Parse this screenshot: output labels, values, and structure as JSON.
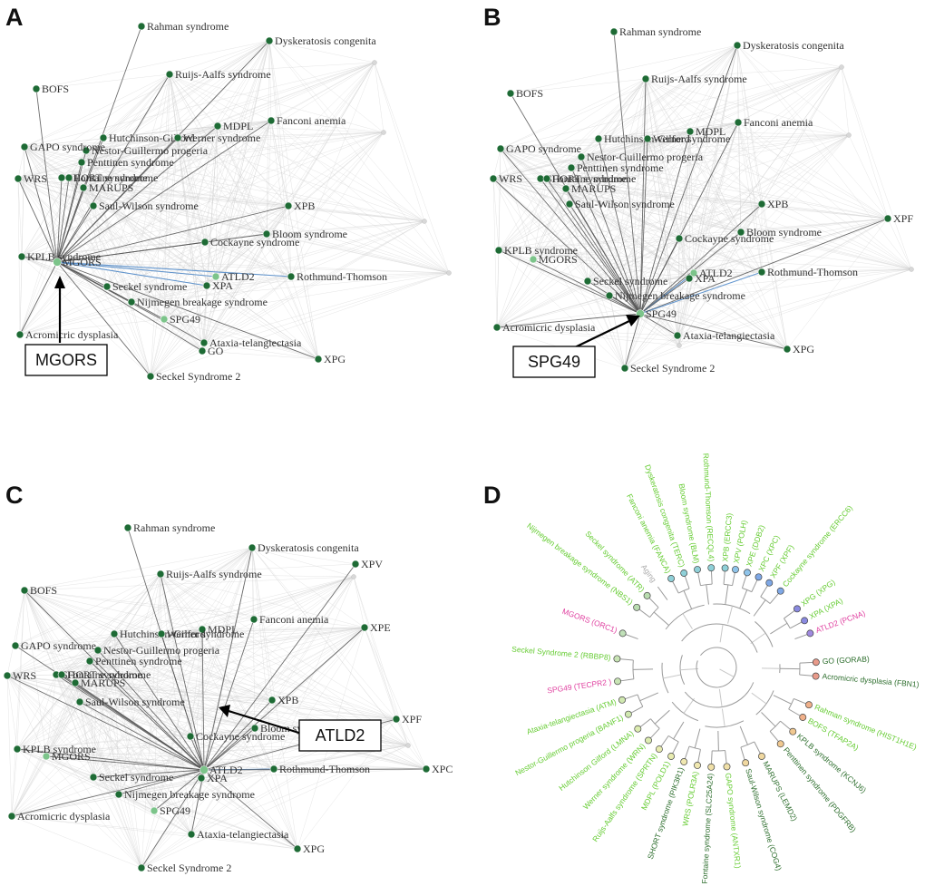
{
  "panels": [
    {
      "letter": "A",
      "callout": "MGORS",
      "focus": "MGORS",
      "nodes": [
        {
          "id": "Rahman syndrome",
          "label": "Rahman syndrome"
        },
        {
          "id": "Dyskeratosis congenita",
          "label": "Dyskeratosis congenita"
        },
        {
          "id": "Ruijs-Aalfs syndrome",
          "label": "Ruijs-Aalfs syndrome"
        },
        {
          "id": "BOFS",
          "label": "BOFS"
        },
        {
          "id": "MDPL",
          "label": "MDPL"
        },
        {
          "id": "Fanconi anemia",
          "label": "Fanconi anemia"
        },
        {
          "id": "Hutchinson Gilford",
          "label": "Hutchinson-Gilford"
        },
        {
          "id": "Werner syndrome",
          "label": "Werner syndrome"
        },
        {
          "id": "Nestor-Guillermo progeria",
          "label": "Nestor-Guillermo progeria"
        },
        {
          "id": "Penttinen syndrome",
          "label": "Penttinen syndrome"
        },
        {
          "id": "GAPO syndrome",
          "label": "GAPO syndrome"
        },
        {
          "id": "WRS",
          "label": "WRS"
        },
        {
          "id": "SHORT syndrome",
          "label": "SHORT syndrome"
        },
        {
          "id": "Fontaine syndrome",
          "label": "Fontaine syndrome"
        },
        {
          "id": "MARUPS",
          "label": "MARUPS"
        },
        {
          "id": "Saul-Wilson syndrome",
          "label": "Saul-Wilson syndrome"
        },
        {
          "id": "XPB",
          "label": "XPB"
        },
        {
          "id": "Bloom syndrome",
          "label": "Bloom syndrome"
        },
        {
          "id": "Cockayne syndrome",
          "label": "Cockayne syndrome"
        },
        {
          "id": "KPLB syndrome",
          "label": "KPLB syndrome"
        },
        {
          "id": "MGORS",
          "label": "MGORS"
        },
        {
          "id": "ATLD2",
          "label": "ATLD2"
        },
        {
          "id": "XPA",
          "label": "XPA"
        },
        {
          "id": "Rothmund-Thomson",
          "label": "Rothmund-Thomson"
        },
        {
          "id": "Seckel syndrome",
          "label": "Seckel syndrome"
        },
        {
          "id": "Nijmegen breakage syndrome",
          "label": "Nijmegen breakage syndrome"
        },
        {
          "id": "SPG49",
          "label": "SPG49"
        },
        {
          "id": "Acromicric dysplasia",
          "label": "Acromicric dysplasia"
        },
        {
          "id": "Ataxia-telangiectasia",
          "label": "Ataxia-telangiectasia"
        },
        {
          "id": "GO",
          "label": "GO"
        },
        {
          "id": "XPG",
          "label": "XPG"
        },
        {
          "id": "Seckel Syndrome 2",
          "label": "Seckel Syndrome 2"
        }
      ]
    },
    {
      "letter": "B",
      "callout": "SPG49",
      "focus": "SPG49",
      "nodes": [
        {
          "id": "Rahman syndrome",
          "label": "Rahman syndrome"
        },
        {
          "id": "Dyskeratosis congenita",
          "label": "Dyskeratosis congenita"
        },
        {
          "id": "Ruijs-Aalfs syndrome",
          "label": "Ruijs-Aalfs syndrome"
        },
        {
          "id": "BOFS",
          "label": "BOFS"
        },
        {
          "id": "MDPL",
          "label": "MDPL"
        },
        {
          "id": "Fanconi anemia",
          "label": "Fanconi anemia"
        },
        {
          "id": "Hutchinson Gilford",
          "label": "Hutchinson-Gilford"
        },
        {
          "id": "Werner syndrome",
          "label": "Werner syndrome"
        },
        {
          "id": "Nestor-Guillermo progeria",
          "label": "Nestor-Guillermo progeria"
        },
        {
          "id": "Penttinen syndrome",
          "label": "Penttinen syndrome"
        },
        {
          "id": "GAPO syndrome",
          "label": "GAPO syndrome"
        },
        {
          "id": "WRS",
          "label": "WRS"
        },
        {
          "id": "SHORT syndrome",
          "label": "SHORT syndrome"
        },
        {
          "id": "Fontaine syndrome",
          "label": "Fontaine syndrome"
        },
        {
          "id": "MARUPS",
          "label": "MARUPS"
        },
        {
          "id": "Saul-Wilson syndrome",
          "label": "Saul-Wilson syndrome"
        },
        {
          "id": "XPB",
          "label": "XPB"
        },
        {
          "id": "XPF",
          "label": "XPF"
        },
        {
          "id": "Bloom syndrome",
          "label": "Bloom syndrome"
        },
        {
          "id": "Cockayne syndrome",
          "label": "Cockayne syndrome"
        },
        {
          "id": "KPLB syndrome",
          "label": "KPLB syndrome"
        },
        {
          "id": "MGORS",
          "label": "MGORS"
        },
        {
          "id": "ATLD2",
          "label": "ATLD2"
        },
        {
          "id": "XPA",
          "label": "XPA"
        },
        {
          "id": "Rothmund-Thomson",
          "label": "Rothmund-Thomson"
        },
        {
          "id": "Seckel syndrome",
          "label": "Seckel syndrome"
        },
        {
          "id": "Nijmegen breakage syndrome",
          "label": "Nijmegen breakage syndrome"
        },
        {
          "id": "SPG49",
          "label": "SPG49"
        },
        {
          "id": "Acromicric dysplasia",
          "label": "Acromicric dysplasia"
        },
        {
          "id": "Ataxia-telangiectasia",
          "label": "Ataxia-telangiectasia"
        },
        {
          "id": "XPG",
          "label": "XPG"
        },
        {
          "id": "Seckel Syndrome 2",
          "label": "Seckel Syndrome 2"
        }
      ]
    },
    {
      "letter": "C",
      "callout": "ATLD2",
      "focus": "ATLD2",
      "nodes": [
        {
          "id": "Rahman syndrome",
          "label": "Rahman syndrome"
        },
        {
          "id": "Dyskeratosis congenita",
          "label": "Dyskeratosis congenita"
        },
        {
          "id": "Ruijs-Aalfs syndrome",
          "label": "Ruijs-Aalfs syndrome"
        },
        {
          "id": "XPV",
          "label": "XPV"
        },
        {
          "id": "BOFS",
          "label": "BOFS"
        },
        {
          "id": "MDPL",
          "label": "MDPL"
        },
        {
          "id": "Fanconi anemia",
          "label": "Fanconi anemia"
        },
        {
          "id": "XPE",
          "label": "XPE"
        },
        {
          "id": "Hutchinson Gilford",
          "label": "Hutchinson-Gilford"
        },
        {
          "id": "Werner syndrome",
          "label": "Werner syndrome"
        },
        {
          "id": "Nestor-Guillermo progeria",
          "label": "Nestor-Guillermo progeria"
        },
        {
          "id": "Penttinen syndrome",
          "label": "Penttinen syndrome"
        },
        {
          "id": "GAPO syndrome",
          "label": "GAPO syndrome"
        },
        {
          "id": "WRS",
          "label": "WRS"
        },
        {
          "id": "SHORT syndrome",
          "label": "SHORT syndrome"
        },
        {
          "id": "Fontaine syndrome",
          "label": "Fontaine syndrome"
        },
        {
          "id": "MARUPS",
          "label": "MARUPS"
        },
        {
          "id": "Saul-Wilson syndrome",
          "label": "Saul-Wilson syndrome"
        },
        {
          "id": "XPB",
          "label": "XPB"
        },
        {
          "id": "XPF",
          "label": "XPF"
        },
        {
          "id": "Bloom syndrome",
          "label": "Bloom syndrome"
        },
        {
          "id": "Cockayne syndrome",
          "label": "Cockayne syndrome"
        },
        {
          "id": "KPLB syndrome",
          "label": "KPLB syndrome"
        },
        {
          "id": "MGORS",
          "label": "MGORS"
        },
        {
          "id": "ATLD2",
          "label": "ATLD2"
        },
        {
          "id": "XPA",
          "label": "XPA"
        },
        {
          "id": "Rothmund-Thomson",
          "label": "Rothmund-Thomson"
        },
        {
          "id": "XPC",
          "label": "XPC"
        },
        {
          "id": "Seckel syndrome",
          "label": "Seckel syndrome"
        },
        {
          "id": "Nijmegen breakage syndrome",
          "label": "Nijmegen breakage syndrome"
        },
        {
          "id": "SPG49",
          "label": "SPG49"
        },
        {
          "id": "Acromicric dysplasia",
          "label": "Acromicric dysplasia"
        },
        {
          "id": "Ataxia-telangiectasia",
          "label": "Ataxia-telangiectasia"
        },
        {
          "id": "XPG",
          "label": "XPG"
        },
        {
          "id": "Seckel Syndrome 2",
          "label": "Seckel Syndrome 2"
        }
      ]
    }
  ],
  "dendrogram": {
    "letter": "D",
    "root_label": "Aging",
    "leaves": [
      {
        "label": "Nijmegen breakage syndrome (NBS1)",
        "color": "#66cc33",
        "dot": "#b9dcb0"
      },
      {
        "label": "Seckel syndrome (ATR)",
        "color": "#66cc33",
        "dot": "#b9dcb0"
      },
      {
        "label": "Aging",
        "color": "#aaaaaa",
        "dot": ""
      },
      {
        "label": "Fanconi anemia (FANCA)",
        "color": "#66cc33",
        "dot": "#8fd0d8"
      },
      {
        "label": "Dyskeratosis congenita (TERC)",
        "color": "#66cc33",
        "dot": "#8fd0d8"
      },
      {
        "label": "Bloom syndrome (BLM)",
        "color": "#66cc33",
        "dot": "#8fd0d8"
      },
      {
        "label": "Rothmund-Thomson (RECQL4)",
        "color": "#66cc33",
        "dot": "#8fd0d8"
      },
      {
        "label": "XPB (ERCC3)",
        "color": "#66cc33",
        "dot": "#8fd0d8"
      },
      {
        "label": "XPV (POLH)",
        "color": "#66cc33",
        "dot": "#8fc4ea"
      },
      {
        "label": "XPE (DDB2)",
        "color": "#66cc33",
        "dot": "#8fc4ea"
      },
      {
        "label": "XPC (XPC)",
        "color": "#66cc33",
        "dot": "#7fa8e6"
      },
      {
        "label": "XPF (XPF)",
        "color": "#66cc33",
        "dot": "#7fa8e6"
      },
      {
        "label": "Cockayne syndrome (ERCC6)",
        "color": "#66cc33",
        "dot": "#7fa8e6"
      },
      {
        "label": "XPG (XPG)",
        "color": "#66cc33",
        "dot": "#8a8ae0"
      },
      {
        "label": "XPA (XPA)",
        "color": "#66cc33",
        "dot": "#8a8ae0"
      },
      {
        "label": "ATLD2 (PCNA)",
        "color": "#e040a0",
        "dot": "#a08ae0"
      },
      {
        "label": "GO (GORAB)",
        "color": "#2f6f2f",
        "dot": "#e89a8a"
      },
      {
        "label": "Acromicric dysplasia (FBN1)",
        "color": "#2f6f2f",
        "dot": "#e89a8a"
      },
      {
        "label": "Rahman syndrome (HIST1H1E)",
        "color": "#66cc33",
        "dot": "#f0b08a"
      },
      {
        "label": "BOFS (TFAP2A)",
        "color": "#66cc33",
        "dot": "#f0b08a"
      },
      {
        "label": "KPLB syndrome (KCNJ6)",
        "color": "#2f6f2f",
        "dot": "#f0c890"
      },
      {
        "label": "Penttinen syndrome (PDGFRB)",
        "color": "#2f6f2f",
        "dot": "#f0c890"
      },
      {
        "label": "MARUPS (LEMD2)",
        "color": "#2f6f2f",
        "dot": "#f0d8a0"
      },
      {
        "label": "Saul-Wilson syndrome (COG4)",
        "color": "#2f6f2f",
        "dot": "#f0d8a0"
      },
      {
        "label": "GAPO syndrome (ANTXR1)",
        "color": "#66cc33",
        "dot": "#f0e0a8"
      },
      {
        "label": "Fontaine syndrome (SLC25A24)",
        "color": "#2f6f2f",
        "dot": "#f0e0a8"
      },
      {
        "label": "WRS (POLR3A)",
        "color": "#66cc33",
        "dot": "#f0e8b0"
      },
      {
        "label": "SHORT syndrome (PIK3R1)",
        "color": "#2f6f2f",
        "dot": "#f0e8b0"
      },
      {
        "label": "MDPL (POLD1)",
        "color": "#66cc33",
        "dot": "#e8ecb0"
      },
      {
        "label": "Ruijs-Aalfs syndrome (SPRTN)",
        "color": "#66cc33",
        "dot": "#e8ecb0"
      },
      {
        "label": "Werner syndrome (WRN)",
        "color": "#66cc33",
        "dot": "#dcecb0"
      },
      {
        "label": "Hutchinson Gilford (LMNA)",
        "color": "#66cc33",
        "dot": "#dcecb0"
      },
      {
        "label": "Nestor-Guillermo progeria (BANF1)",
        "color": "#66cc33",
        "dot": "#d0e8b0"
      },
      {
        "label": "Ataxia-telangiectasia (ATM)",
        "color": "#66cc33",
        "dot": "#d0e8b0"
      },
      {
        "label": "SPG49 (TECPR2 )",
        "color": "#e040a0",
        "dot": "#c8e4b4"
      },
      {
        "label": "Seckel Syndrome 2 (RBBP8)",
        "color": "#66cc33",
        "dot": "#c8e4b4"
      },
      {
        "label": "MGORS (ORC1)",
        "color": "#e040a0",
        "dot": "#c0e0b8"
      }
    ]
  },
  "colors": {
    "node": "#1e6b35",
    "focus_node": "#7cc48a",
    "edge_dark": "#555555",
    "edge_light": "#cfcfcf",
    "edge_blue": "#4a86c8",
    "tree_line": "#9a9a9a"
  }
}
